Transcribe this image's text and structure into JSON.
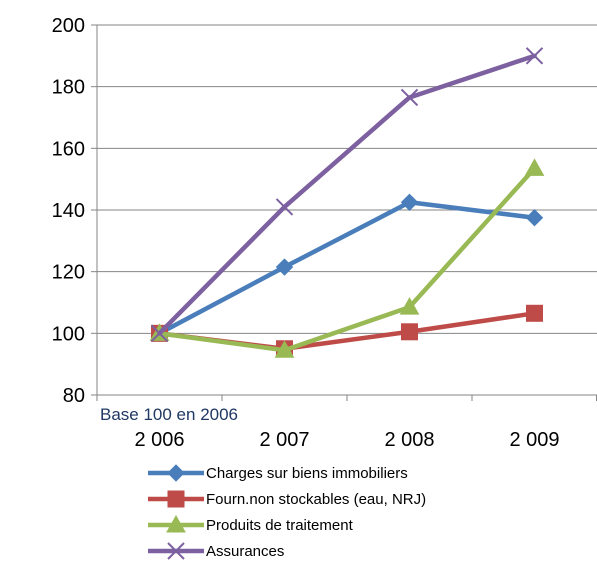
{
  "chart_data": {
    "type": "line",
    "title": "",
    "xlabel": "",
    "ylabel": "",
    "annotation": "Base 100 en 2006",
    "categories": [
      "2 006",
      "2 007",
      "2 008",
      "2 009"
    ],
    "ylim": [
      80,
      200
    ],
    "yticks": [
      80,
      100,
      120,
      140,
      160,
      180,
      200
    ],
    "grid": "horizontal",
    "legend_position": "bottom",
    "series": [
      {
        "name": "Charges sur biens immobiliers",
        "values": [
          100,
          121.5,
          142.5,
          137.5
        ],
        "color": "#4A7EBB",
        "marker": "diamond"
      },
      {
        "name": "Fourn.non stockables (eau, NRJ)",
        "values": [
          100,
          95,
          100.5,
          106.5
        ],
        "color": "#BE4B48",
        "marker": "square"
      },
      {
        "name": "Produits de traitement",
        "values": [
          100,
          94.5,
          108.5,
          153.5
        ],
        "color": "#98B954",
        "marker": "triangle"
      },
      {
        "name": "Assurances",
        "values": [
          100,
          141,
          176.5,
          190
        ],
        "color": "#7D60A0",
        "marker": "x"
      }
    ],
    "annotation_color": "#1F3864",
    "axis_color": "#868686",
    "grid_color": "#868686"
  }
}
